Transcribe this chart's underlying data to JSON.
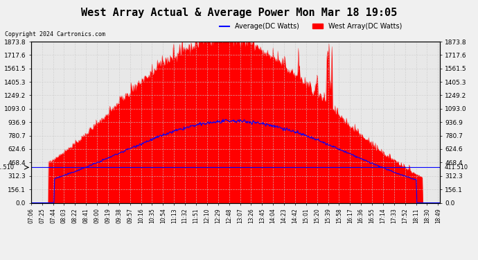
{
  "title": "West Array Actual & Average Power Mon Mar 18 19:05",
  "copyright": "Copyright 2024 Cartronics.com",
  "legend_avg": "Average(DC Watts)",
  "legend_west": "West Array(DC Watts)",
  "ymin": 0.0,
  "ymax": 1873.8,
  "yticks": [
    0.0,
    156.1,
    312.3,
    468.4,
    624.6,
    780.7,
    936.9,
    1093.0,
    1249.2,
    1405.3,
    1561.5,
    1717.6,
    1873.8
  ],
  "hline_value": 411.51,
  "hline_label": "411.510",
  "bg_color": "#f0f0f0",
  "plot_bg_color": "#e8e8e8",
  "grid_color": "#cccccc",
  "west_color": "#ff0000",
  "avg_color": "#0000ff",
  "title_color": "#000000",
  "copyright_color": "#000000",
  "xtick_start_hour": 7,
  "xtick_start_min": 6,
  "xtick_interval_min": 19,
  "xtick_count": 38,
  "n_points": 680
}
